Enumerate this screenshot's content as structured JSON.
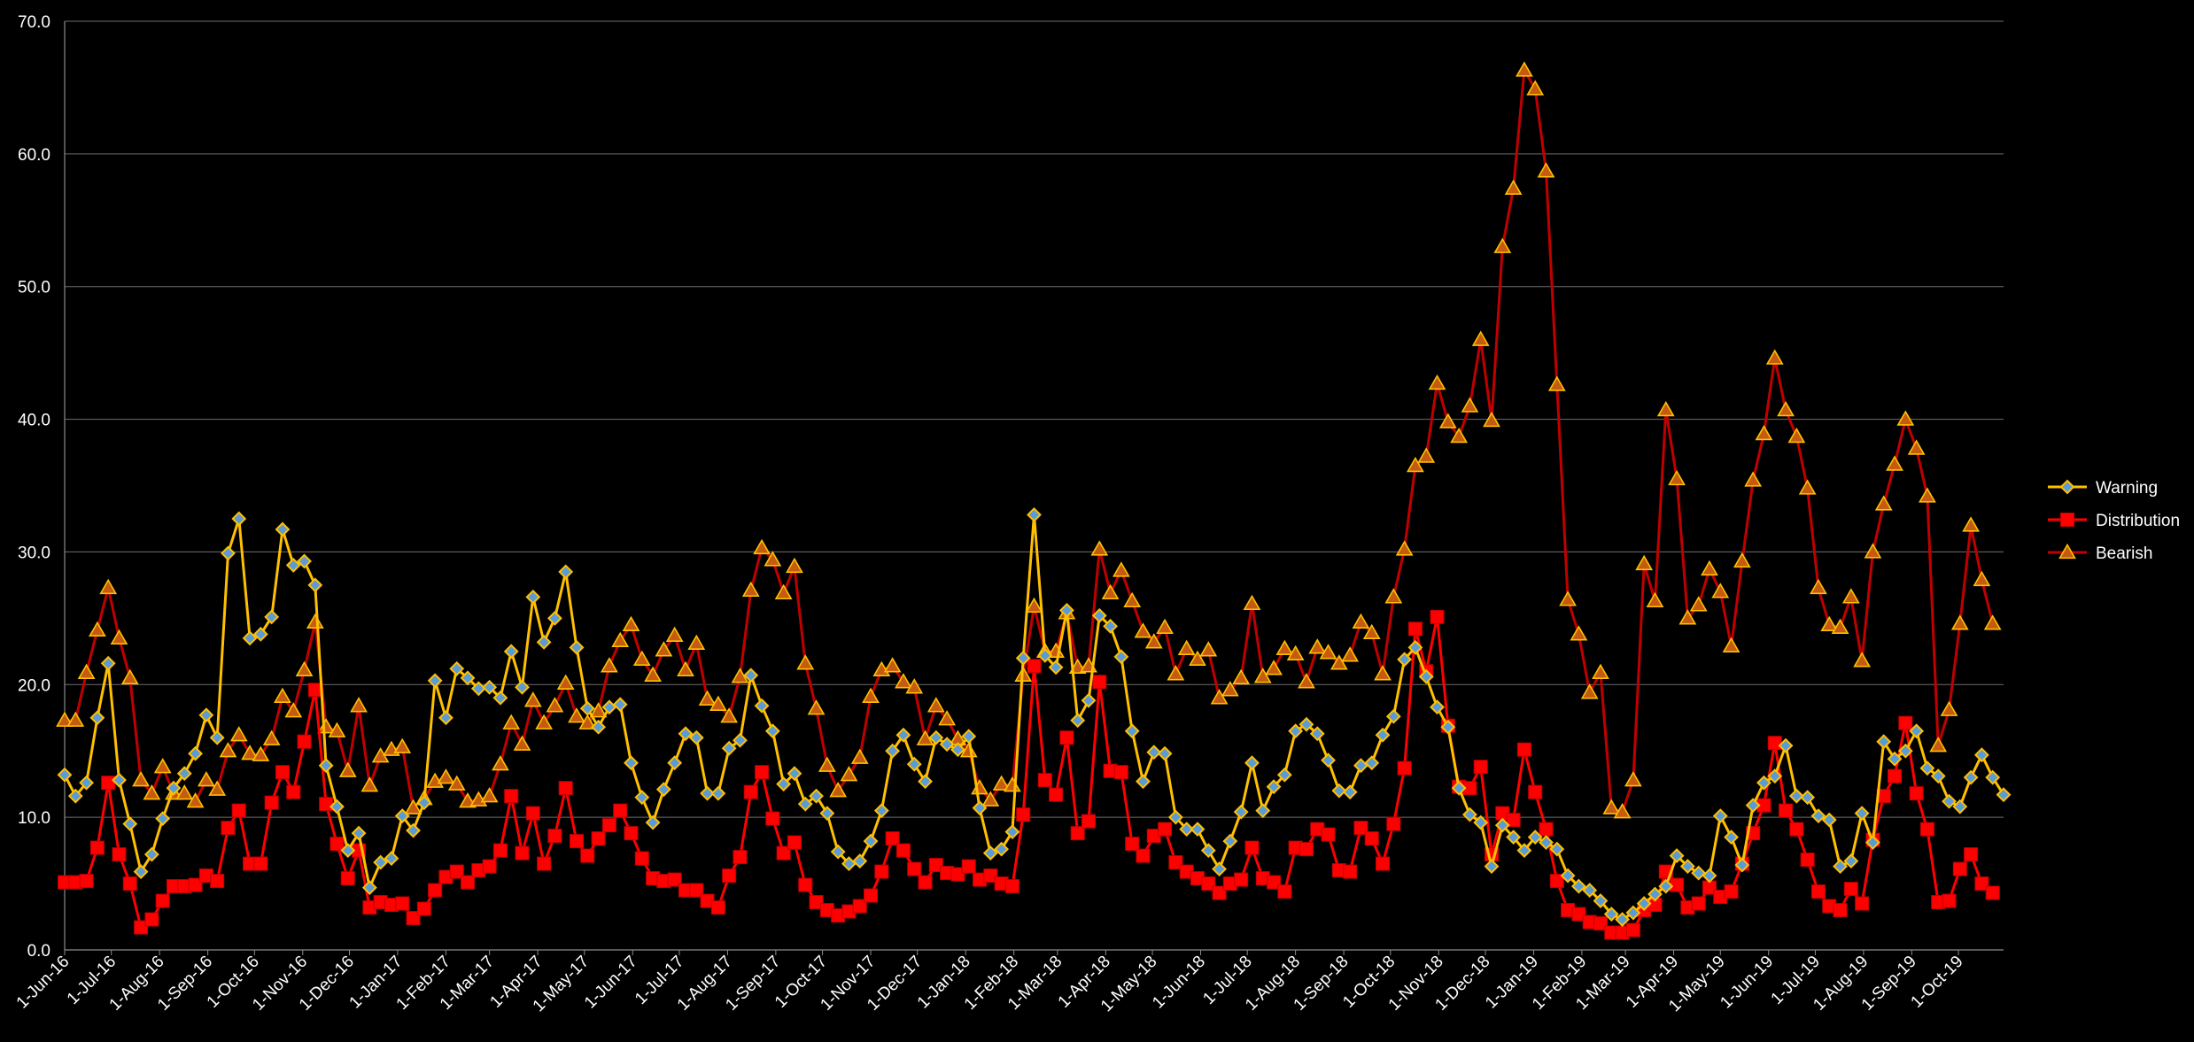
{
  "chart_data": {
    "type": "line",
    "title": "",
    "xlabel": "",
    "ylabel": "",
    "ylim": [
      0,
      70
    ],
    "y_ticks": [
      "0.0",
      "10.0",
      "20.0",
      "30.0",
      "40.0",
      "50.0",
      "60.0",
      "70.0"
    ],
    "grid": "horizontal",
    "legend_position": "right",
    "x_tick_labels": [
      "1-Jun-16",
      "1-Jul-16",
      "1-Aug-16",
      "1-Sep-16",
      "1-Oct-16",
      "1-Nov-16",
      "1-Dec-16",
      "1-Jan-17",
      "1-Feb-17",
      "1-Mar-17",
      "1-Apr-17",
      "1-May-17",
      "1-Jun-17",
      "1-Jul-17",
      "1-Aug-17",
      "1-Sep-17",
      "1-Oct-17",
      "1-Nov-17",
      "1-Dec-17",
      "1-Jan-18",
      "1-Feb-18",
      "1-Mar-18",
      "1-Apr-18",
      "1-May-18",
      "1-Jun-18",
      "1-Jul-18",
      "1-Aug-18",
      "1-Sep-18",
      "1-Oct-18",
      "1-Nov-18",
      "1-Dec-18",
      "1-Jan-19",
      "1-Feb-19",
      "1-Mar-19",
      "1-Apr-19",
      "1-May-19",
      "1-Jun-19",
      "1-Jul-19",
      "1-Aug-19",
      "1-Sep-19",
      "1-Oct-19"
    ],
    "x_start": "2016-06-01",
    "x_step_days": 7,
    "series": [
      {
        "name": "Warning",
        "color": "#FFC000",
        "marker": "diamond",
        "marker_fill": "#5B9BD5",
        "values": [
          13.2,
          11.6,
          12.6,
          17.5,
          21.6,
          12.8,
          9.5,
          5.9,
          7.2,
          9.9,
          12.2,
          13.3,
          14.8,
          17.7,
          16.0,
          29.9,
          32.5,
          23.5,
          23.8,
          25.1,
          31.7,
          29.0,
          29.3,
          27.5,
          13.9,
          10.8,
          7.5,
          8.8,
          4.7,
          6.6,
          6.9,
          10.1,
          9.0,
          11.1,
          20.3,
          17.5,
          21.2,
          20.5,
          19.7,
          19.8,
          19.0,
          22.5,
          19.8,
          26.6,
          23.2,
          25.0,
          28.5,
          22.8,
          18.2,
          16.8,
          18.3,
          18.5,
          14.1,
          11.5,
          9.6,
          12.1,
          14.1,
          16.3,
          16.0,
          11.8,
          11.8,
          15.2,
          15.8,
          20.7,
          18.4,
          16.5,
          12.5,
          13.3,
          11.0,
          11.6,
          10.3,
          7.4,
          6.5,
          6.7,
          8.2,
          10.5,
          15.0,
          16.2,
          14.0,
          12.7,
          16.0,
          15.5,
          15.1,
          16.1,
          10.7,
          7.3,
          7.6,
          8.9,
          22.0,
          32.8,
          22.2,
          21.3,
          25.6,
          17.3,
          18.8,
          25.2,
          24.4,
          22.1,
          16.5,
          12.7,
          14.9,
          14.8,
          10.0,
          9.1,
          9.1,
          7.5,
          6.1,
          8.2,
          10.4,
          14.1,
          10.5,
          12.3,
          13.2,
          16.5,
          17.0,
          16.3,
          14.3,
          12.0,
          11.9,
          13.9,
          14.1,
          16.2,
          17.6,
          21.9,
          22.8,
          20.6,
          18.3,
          16.8,
          12.2,
          10.2,
          9.6,
          6.3,
          9.4,
          8.5,
          7.5,
          8.5,
          8.1,
          7.6,
          5.6,
          4.8,
          4.5,
          3.7,
          2.7,
          2.3,
          2.8,
          3.5,
          4.2,
          4.8,
          7.1,
          6.3,
          5.8,
          5.6,
          10.1,
          8.5,
          6.4,
          10.9,
          12.6,
          13.1,
          15.4,
          11.6,
          11.5,
          10.1,
          9.8,
          6.3,
          6.7,
          10.3,
          8.1,
          15.7,
          14.4,
          15.0,
          16.5,
          13.7,
          13.1,
          11.2,
          10.8,
          13.0,
          14.7,
          13.0,
          11.7
        ]
      },
      {
        "name": "Distribution",
        "color": "#FF0000",
        "marker": "square",
        "marker_fill": "#FF0000",
        "values": [
          5.1,
          5.1,
          5.2,
          7.7,
          12.6,
          7.2,
          5.0,
          1.7,
          2.3,
          3.7,
          4.8,
          4.8,
          4.9,
          5.6,
          5.2,
          9.2,
          10.5,
          6.5,
          6.5,
          11.1,
          13.4,
          11.9,
          15.7,
          19.6,
          11.0,
          8.0,
          5.4,
          7.5,
          3.2,
          3.6,
          3.4,
          3.5,
          2.4,
          3.1,
          4.5,
          5.5,
          5.9,
          5.1,
          6.0,
          6.3,
          7.5,
          11.6,
          7.3,
          10.3,
          6.5,
          8.6,
          12.2,
          8.2,
          7.1,
          8.4,
          9.4,
          10.5,
          8.8,
          6.9,
          5.4,
          5.2,
          5.3,
          4.5,
          4.5,
          3.7,
          3.2,
          5.6,
          7.0,
          11.9,
          13.4,
          9.9,
          7.3,
          8.1,
          4.9,
          3.6,
          3.0,
          2.6,
          2.9,
          3.3,
          4.1,
          5.9,
          8.4,
          7.5,
          6.1,
          5.1,
          6.4,
          5.8,
          5.7,
          6.3,
          5.3,
          5.6,
          5.0,
          4.8,
          10.2,
          21.4,
          12.8,
          11.7,
          16.0,
          8.8,
          9.7,
          20.2,
          13.5,
          13.4,
          8.0,
          7.1,
          8.6,
          9.1,
          6.6,
          5.9,
          5.4,
          5.0,
          4.3,
          5.0,
          5.3,
          7.7,
          5.4,
          5.1,
          4.4,
          7.7,
          7.6,
          9.1,
          8.7,
          6.0,
          5.9,
          9.2,
          8.4,
          6.5,
          9.5,
          13.7,
          24.2,
          21.0,
          25.1,
          16.9,
          12.3,
          12.2,
          13.8,
          7.2,
          10.3,
          9.8,
          15.1,
          11.9,
          9.1,
          5.2,
          3.0,
          2.7,
          2.1,
          2.0,
          1.3,
          1.3,
          1.5,
          3.0,
          3.4,
          5.9,
          4.9,
          3.2,
          3.5,
          4.7,
          4.0,
          4.4,
          6.5,
          8.8,
          10.9,
          15.6,
          10.5,
          9.1,
          6.8,
          4.4,
          3.3,
          3.0,
          4.6,
          3.5,
          8.3,
          11.6,
          13.1,
          17.1,
          11.8,
          9.1,
          3.6,
          3.7,
          6.1,
          7.2,
          5.0,
          4.3
        ]
      },
      {
        "name": "Bearish",
        "color": "#C00000",
        "marker": "triangle",
        "marker_fill": "#C55A11",
        "values": [
          17.3,
          17.3,
          20.9,
          24.1,
          27.3,
          23.5,
          20.5,
          12.8,
          11.8,
          13.8,
          11.8,
          11.8,
          11.2,
          12.8,
          12.1,
          15.0,
          16.2,
          14.8,
          14.7,
          15.9,
          19.1,
          18.0,
          21.1,
          24.7,
          16.8,
          16.5,
          13.5,
          18.4,
          12.4,
          14.6,
          15.1,
          15.3,
          10.7,
          11.4,
          12.7,
          13.0,
          12.5,
          11.2,
          11.3,
          11.6,
          14.0,
          17.1,
          15.5,
          18.8,
          17.1,
          18.4,
          20.1,
          17.6,
          17.1,
          18.0,
          21.4,
          23.3,
          24.5,
          21.9,
          20.7,
          22.6,
          23.7,
          21.1,
          23.1,
          18.9,
          18.5,
          17.6,
          20.6,
          27.1,
          30.3,
          29.4,
          26.9,
          28.9,
          21.6,
          18.2,
          13.9,
          12.0,
          13.2,
          14.5,
          19.1,
          21.1,
          21.4,
          20.2,
          19.8,
          15.9,
          18.4,
          17.4,
          15.9,
          15.0,
          12.2,
          11.3,
          12.5,
          12.4,
          20.7,
          25.9,
          22.5,
          22.5,
          25.4,
          21.3,
          21.4,
          30.2,
          26.9,
          28.6,
          26.3,
          24.0,
          23.2,
          24.3,
          20.8,
          22.7,
          21.9,
          22.6,
          19.0,
          19.6,
          20.5,
          26.1,
          20.6,
          21.2,
          22.7,
          22.3,
          20.2,
          22.8,
          22.4,
          21.6,
          22.2,
          24.7,
          23.9,
          20.8,
          26.6,
          30.2,
          36.5,
          37.2,
          42.7,
          39.8,
          38.7,
          41.0,
          46.0,
          39.9,
          53.0,
          57.4,
          66.3,
          64.9,
          58.7,
          42.6,
          26.4,
          23.8,
          19.4,
          20.9,
          10.7,
          10.4,
          12.8,
          29.1,
          26.3,
          40.7,
          35.5,
          25.0,
          26.0,
          28.7,
          27.0,
          22.9,
          29.3,
          35.4,
          38.9,
          44.6,
          40.7,
          38.7,
          34.8,
          27.3,
          24.5,
          24.3,
          26.6,
          21.8,
          30.0,
          33.6,
          36.6,
          40.0,
          37.8,
          34.2,
          15.4,
          18.1,
          24.6,
          32.0,
          27.9,
          24.6
        ]
      }
    ]
  }
}
